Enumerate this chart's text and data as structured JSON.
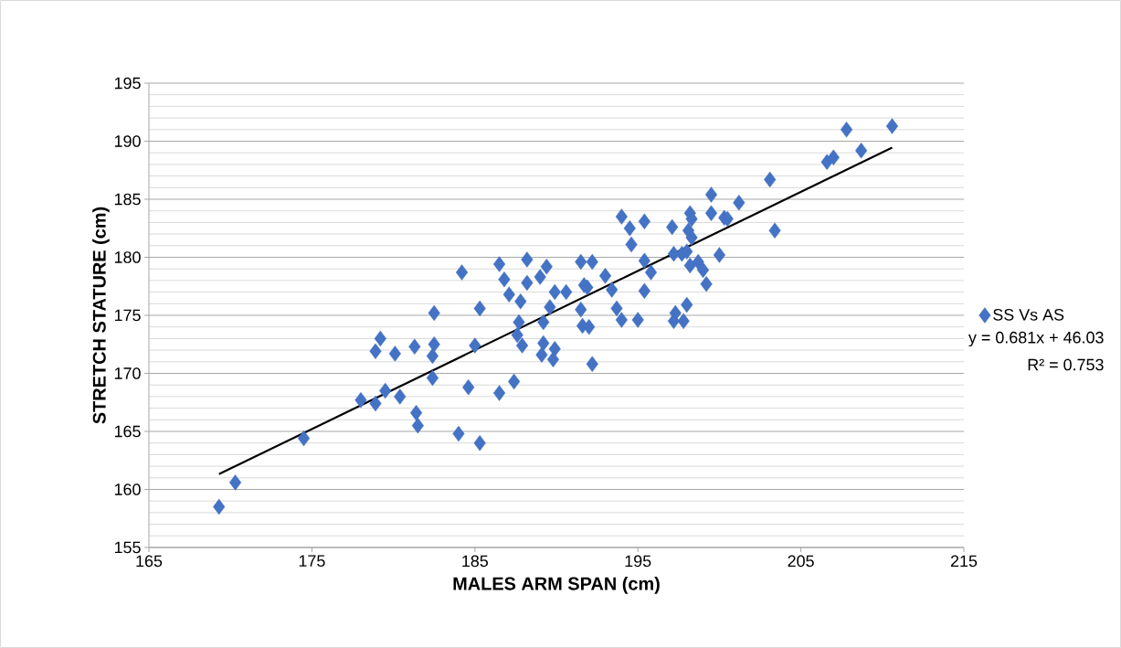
{
  "chart_data": {
    "type": "scatter",
    "xlabel": "MALES ARM SPAN (cm)",
    "ylabel": "STRETCH STATURE (cm)",
    "xlim": [
      165,
      215
    ],
    "xticks": [
      165,
      175,
      185,
      195,
      205,
      215
    ],
    "ylim": [
      155,
      195
    ],
    "yticks": [
      155,
      160,
      165,
      170,
      175,
      180,
      185,
      190,
      195
    ],
    "grid": "y",
    "legend": "right",
    "annotations": [
      "y = 0.681x + 46.03",
      "R² = 0.753"
    ],
    "series": [
      {
        "name": "SS Vs AS",
        "marker": "diamond",
        "color": "#4472c4",
        "x": [
          169.3,
          170.3,
          174.5,
          178.0,
          178.9,
          179.5,
          180.4,
          179.2,
          178.9,
          180.1,
          181.3,
          181.4,
          181.5,
          182.5,
          182.5,
          182.4,
          182.4,
          184.0,
          185.3,
          184.6,
          184.2,
          185.0,
          185.3,
          186.5,
          186.8,
          187.1,
          187.8,
          187.7,
          187.6,
          187.9,
          186.5,
          187.4,
          188.2,
          188.2,
          189.0,
          189.4,
          189.6,
          189.2,
          189.2,
          189.1,
          189.9,
          189.8,
          189.9,
          190.6,
          191.5,
          192.2,
          191.7,
          191.9,
          191.5,
          191.6,
          192.0,
          192.2,
          193.0,
          193.4,
          193.7,
          194.0,
          194.6,
          195.0,
          194.0,
          194.5,
          195.4,
          195.4,
          195.8,
          195.4,
          197.1,
          197.2,
          197.7,
          198.2,
          198.3,
          198.1,
          198.3,
          198.0,
          198.2,
          198.7,
          199.0,
          199.2,
          198.0,
          197.3,
          197.2,
          197.8,
          199.5,
          199.5,
          200.3,
          200.5,
          200.0,
          201.2,
          203.1,
          203.4,
          206.6,
          207.0,
          207.8,
          208.7,
          210.6
        ],
        "values": [
          158.5,
          160.6,
          164.4,
          167.7,
          167.4,
          168.5,
          168.0,
          173.0,
          171.9,
          171.7,
          172.3,
          166.6,
          165.5,
          175.2,
          172.5,
          171.5,
          169.6,
          164.8,
          164.0,
          168.8,
          178.7,
          172.4,
          175.6,
          179.4,
          178.1,
          176.8,
          176.2,
          174.4,
          173.3,
          172.4,
          168.3,
          169.3,
          179.8,
          177.8,
          178.3,
          179.2,
          175.7,
          174.4,
          172.6,
          171.6,
          172.1,
          171.2,
          177.0,
          177.0,
          179.6,
          179.6,
          177.6,
          177.4,
          175.5,
          174.1,
          174.0,
          170.8,
          178.4,
          177.2,
          175.6,
          174.6,
          181.1,
          174.6,
          183.5,
          182.5,
          183.1,
          179.7,
          178.7,
          177.1,
          182.6,
          180.3,
          180.3,
          183.8,
          183.3,
          182.3,
          181.7,
          180.5,
          179.3,
          179.6,
          178.9,
          177.7,
          175.9,
          175.2,
          174.5,
          174.5,
          185.4,
          183.8,
          183.4,
          183.3,
          180.2,
          184.7,
          186.7,
          182.3,
          188.2,
          188.6,
          191.0,
          189.2,
          191.3
        ]
      },
      {
        "type": "line",
        "marker": "none",
        "color": "#000000",
        "x": [
          169.3,
          210.6
        ],
        "values": [
          161.32,
          189.45
        ]
      }
    ]
  }
}
